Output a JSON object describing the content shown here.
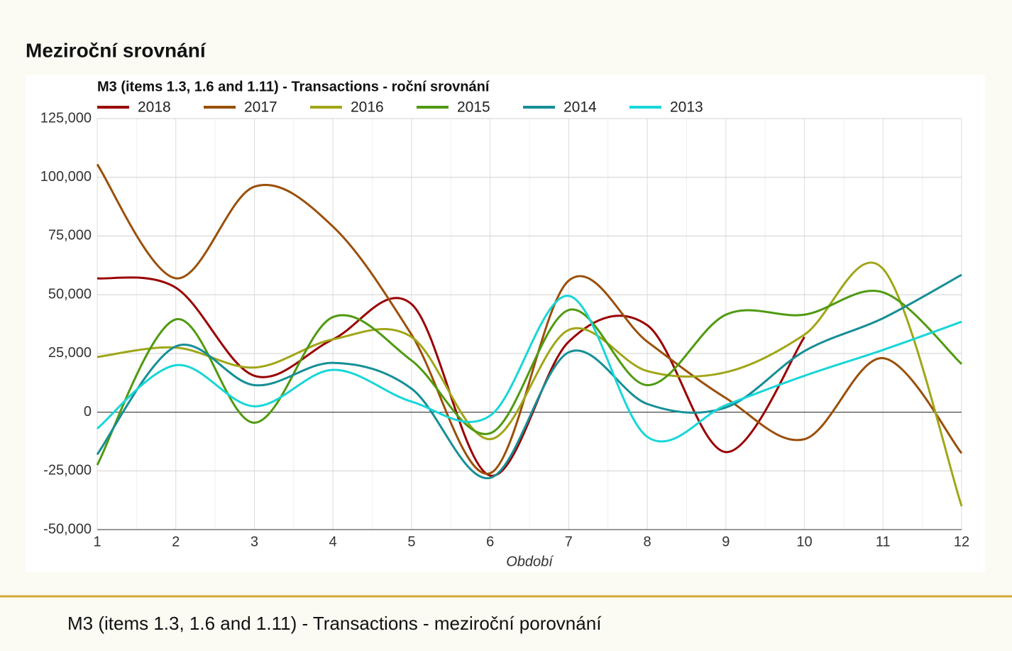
{
  "header": {
    "title": "Meziroční srovnání"
  },
  "chart_data": {
    "type": "line",
    "title": "M3 (items 1.3, 1.6 and 1.11) - Transactions - roční srovnání",
    "xlabel": "Období",
    "x": [
      1,
      2,
      3,
      4,
      5,
      6,
      7,
      8,
      9,
      10,
      11,
      12
    ],
    "xlim": [
      1,
      12
    ],
    "xticks": [
      1,
      2,
      3,
      4,
      5,
      6,
      7,
      8,
      9,
      10,
      11,
      12
    ],
    "ylim": [
      -50000,
      125000
    ],
    "yticks": [
      {
        "value": -50000,
        "label": "-50,000"
      },
      {
        "value": -25000,
        "label": "-25,000"
      },
      0,
      {
        "value": 25000,
        "label": "25,000"
      },
      {
        "value": 50000,
        "label": "50,000"
      },
      {
        "value": 75000,
        "label": "75,000"
      },
      {
        "value": 100000,
        "label": "100,000"
      },
      {
        "value": 125000,
        "label": "125,000"
      }
    ],
    "grid": true,
    "legend": "top",
    "series": [
      {
        "name": "2018",
        "color": "#990000",
        "values": [
          57000,
          53000,
          15500,
          31000,
          46000,
          -27000,
          30000,
          37000,
          -17000,
          32000,
          null,
          null
        ]
      },
      {
        "name": "2017",
        "color": "#9a4f0a",
        "values": [
          105500,
          57000,
          96000,
          79000,
          33000,
          -26000,
          56000,
          30000,
          6000,
          -11500,
          23000,
          -17500
        ]
      },
      {
        "name": "2016",
        "color": "#a0a617",
        "values": [
          23500,
          27500,
          19000,
          31000,
          32000,
          -11500,
          35000,
          17500,
          17000,
          33000,
          61000,
          -40000
        ]
      },
      {
        "name": "2015",
        "color": "#4f9a10",
        "values": [
          -22500,
          39500,
          -4500,
          40500,
          22000,
          -9000,
          43500,
          11500,
          41500,
          41500,
          51000,
          20500
        ]
      },
      {
        "name": "2014",
        "color": "#168f96",
        "values": [
          -18000,
          28000,
          11500,
          21000,
          10000,
          -28000,
          25500,
          3500,
          2000,
          26000,
          40000,
          58500
        ]
      },
      {
        "name": "2013",
        "color": "#18d6d8",
        "values": [
          -7000,
          20000,
          2500,
          18000,
          4500,
          -1500,
          49500,
          -10500,
          3000,
          15500,
          26500,
          38500
        ]
      }
    ]
  },
  "footer": {
    "text": "M3 (items 1.3, 1.6 and 1.11) - Transactions - meziroční porovnání"
  }
}
